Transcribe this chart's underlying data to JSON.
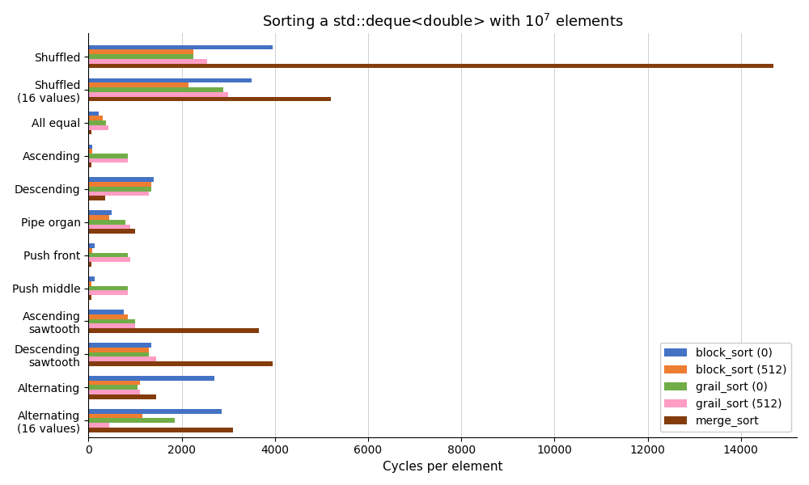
{
  "title": "Sorting a std::deque<double> with 10$^7$ elements",
  "xlabel": "Cycles per element",
  "categories": [
    "Shuffled",
    "Shuffled\n(16 values)",
    "All equal",
    "Ascending",
    "Descending",
    "Pipe organ",
    "Push front",
    "Push middle",
    "Ascending\nsawtooth",
    "Descending\nsawtooth",
    "Alternating",
    "Alternating\n(16 values)"
  ],
  "series": {
    "block_sort (0)": [
      3950,
      3500,
      220,
      80,
      1400,
      500,
      140,
      130,
      750,
      1350,
      2700,
      2850
    ],
    "block_sort (512)": [
      2250,
      2150,
      300,
      80,
      1350,
      450,
      80,
      60,
      850,
      1300,
      1100,
      1150
    ],
    "grail_sort (0)": [
      2250,
      2900,
      380,
      850,
      1350,
      800,
      850,
      850,
      1000,
      1300,
      1050,
      1850
    ],
    "grail_sort (512)": [
      2550,
      3000,
      430,
      850,
      1300,
      900,
      900,
      850,
      1000,
      1450,
      1100,
      450
    ],
    "merge_sort": [
      14700,
      5200,
      60,
      60,
      350,
      1000,
      60,
      60,
      3650,
      3950,
      1450,
      3100
    ]
  },
  "colors": {
    "block_sort (0)": "#4472c4",
    "block_sort (512)": "#ed7d31",
    "grail_sort (0)": "#70ad47",
    "grail_sort (512)": "#ff9dc4",
    "merge_sort": "#843c0c"
  },
  "xlim": [
    0,
    15200
  ],
  "xticks": [
    0,
    2000,
    4000,
    6000,
    8000,
    10000,
    12000,
    14000
  ],
  "figsize": [
    10.0,
    6.0
  ],
  "dpi": 100,
  "bar_height": 0.14,
  "group_padding": 0.06
}
